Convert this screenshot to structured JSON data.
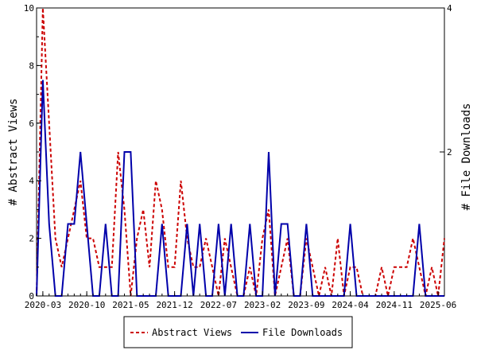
{
  "chart_data": {
    "type": "line",
    "x_tick_labels": [
      "2020-03",
      "2020-10",
      "2021-05",
      "2021-12",
      "2022-07",
      "2023-02",
      "2023-09",
      "2024-04",
      "2024-11",
      "2025-06"
    ],
    "y_left": {
      "label": "# Abstract Views",
      "ticks": [
        "0",
        "2",
        "4",
        "6",
        "8",
        "10"
      ],
      "range": [
        0,
        10
      ]
    },
    "y_right": {
      "label": "# File Downloads",
      "ticks": [
        "2",
        "4"
      ],
      "range": [
        0,
        4
      ]
    },
    "months": [
      "2020-02",
      "2020-03",
      "2020-04",
      "2020-05",
      "2020-06",
      "2020-07",
      "2020-08",
      "2020-09",
      "2020-10",
      "2020-11",
      "2020-12",
      "2021-01",
      "2021-02",
      "2021-03",
      "2021-04",
      "2021-05",
      "2021-06",
      "2021-07",
      "2021-08",
      "2021-09",
      "2021-10",
      "2021-11",
      "2021-12",
      "2022-01",
      "2022-02",
      "2022-03",
      "2022-04",
      "2022-05",
      "2022-06",
      "2022-07",
      "2022-08",
      "2022-09",
      "2022-10",
      "2022-11",
      "2022-12",
      "2023-01",
      "2023-02",
      "2023-03",
      "2023-04",
      "2023-05",
      "2023-06",
      "2023-07",
      "2023-08",
      "2023-09",
      "2023-10",
      "2023-11",
      "2023-12",
      "2024-01",
      "2024-02",
      "2024-03",
      "2024-04",
      "2024-05",
      "2024-06",
      "2024-07",
      "2024-08",
      "2024-09",
      "2024-10",
      "2024-11",
      "2024-12",
      "2025-01",
      "2025-02",
      "2025-03",
      "2025-04",
      "2025-05",
      "2025-06",
      "2025-07"
    ],
    "series": [
      {
        "name": "Abstract Views",
        "axis": "left",
        "color": "#cc0000",
        "dash": true,
        "values": [
          0,
          10,
          6,
          2,
          1,
          2,
          3,
          4,
          2,
          2,
          1,
          1,
          1,
          5,
          3,
          0,
          2,
          3,
          1,
          4,
          3,
          1,
          1,
          4,
          2,
          1,
          1,
          2,
          1,
          0,
          2,
          1,
          0,
          0,
          1,
          0,
          2,
          3,
          0,
          1,
          2,
          0,
          0,
          2,
          1,
          0,
          1,
          0,
          2,
          0,
          1,
          1,
          0,
          0,
          0,
          1,
          0,
          1,
          1,
          1,
          2,
          1,
          0,
          1,
          0,
          2
        ]
      },
      {
        "name": "File Downloads",
        "axis": "right",
        "color": "#0000aa",
        "dash": false,
        "values": [
          0,
          3,
          1,
          0,
          0,
          1,
          1,
          2,
          1,
          0,
          0,
          1,
          0,
          0,
          2,
          2,
          0,
          0,
          0,
          0,
          1,
          0,
          0,
          0,
          1,
          0,
          1,
          0,
          0,
          1,
          0,
          1,
          0,
          0,
          1,
          0,
          0,
          2,
          0,
          1,
          1,
          0,
          0,
          1,
          0,
          0,
          0,
          0,
          0,
          0,
          1,
          0,
          0,
          0,
          0,
          0,
          0,
          0,
          0,
          0,
          0,
          1,
          0,
          0,
          0,
          0
        ]
      }
    ],
    "legend": {
      "placement": "bottom"
    },
    "grid": false
  }
}
